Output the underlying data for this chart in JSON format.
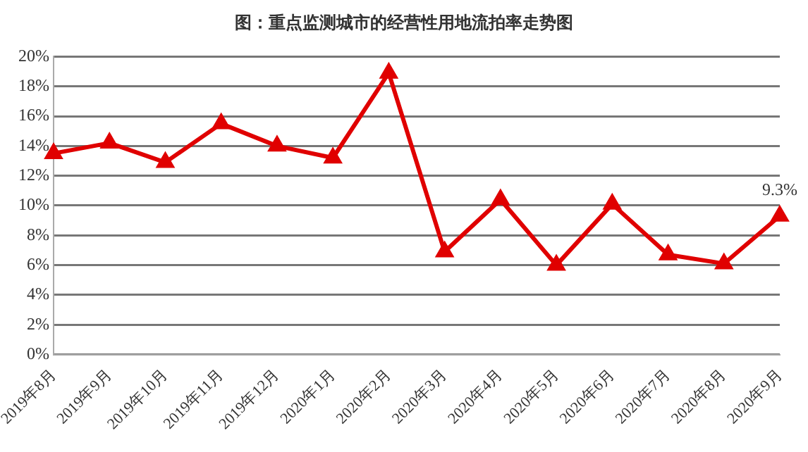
{
  "chart_data": {
    "type": "line",
    "title": "图：重点监测城市的经营性用地流拍率走势图",
    "categories": [
      "2019年8月",
      "2019年9月",
      "2019年10月",
      "2019年11月",
      "2019年12月",
      "2020年1月",
      "2020年2月",
      "2020年3月",
      "2020年4月",
      "2020年5月",
      "2020年6月",
      "2020年7月",
      "2020年8月",
      "2020年9月"
    ],
    "series": [
      {
        "color": "#e00000",
        "values": [
          13.5,
          14.2,
          12.9,
          15.5,
          14.0,
          13.2,
          18.9,
          6.9,
          10.4,
          6.0,
          10.1,
          6.7,
          6.1,
          9.3
        ],
        "value_labels": [
          null,
          null,
          null,
          null,
          null,
          null,
          null,
          null,
          null,
          null,
          null,
          null,
          null,
          "9.3%"
        ]
      }
    ],
    "ylim": [
      0,
      20
    ],
    "yticks": [
      {
        "value": 0,
        "label": "0%"
      },
      {
        "value": 2,
        "label": "2%"
      },
      {
        "value": 4,
        "label": "4%"
      },
      {
        "value": 6,
        "label": "6%"
      },
      {
        "value": 8,
        "label": "8%"
      },
      {
        "value": 10,
        "label": "10%"
      },
      {
        "value": 12,
        "label": "12%"
      },
      {
        "value": 14,
        "label": "14%"
      },
      {
        "value": 16,
        "label": "16%"
      },
      {
        "value": 18,
        "label": "18%"
      },
      {
        "value": 20,
        "label": "20%"
      }
    ],
    "grid": "y",
    "legend": false,
    "marker": "triangle",
    "line_style": "solid"
  }
}
